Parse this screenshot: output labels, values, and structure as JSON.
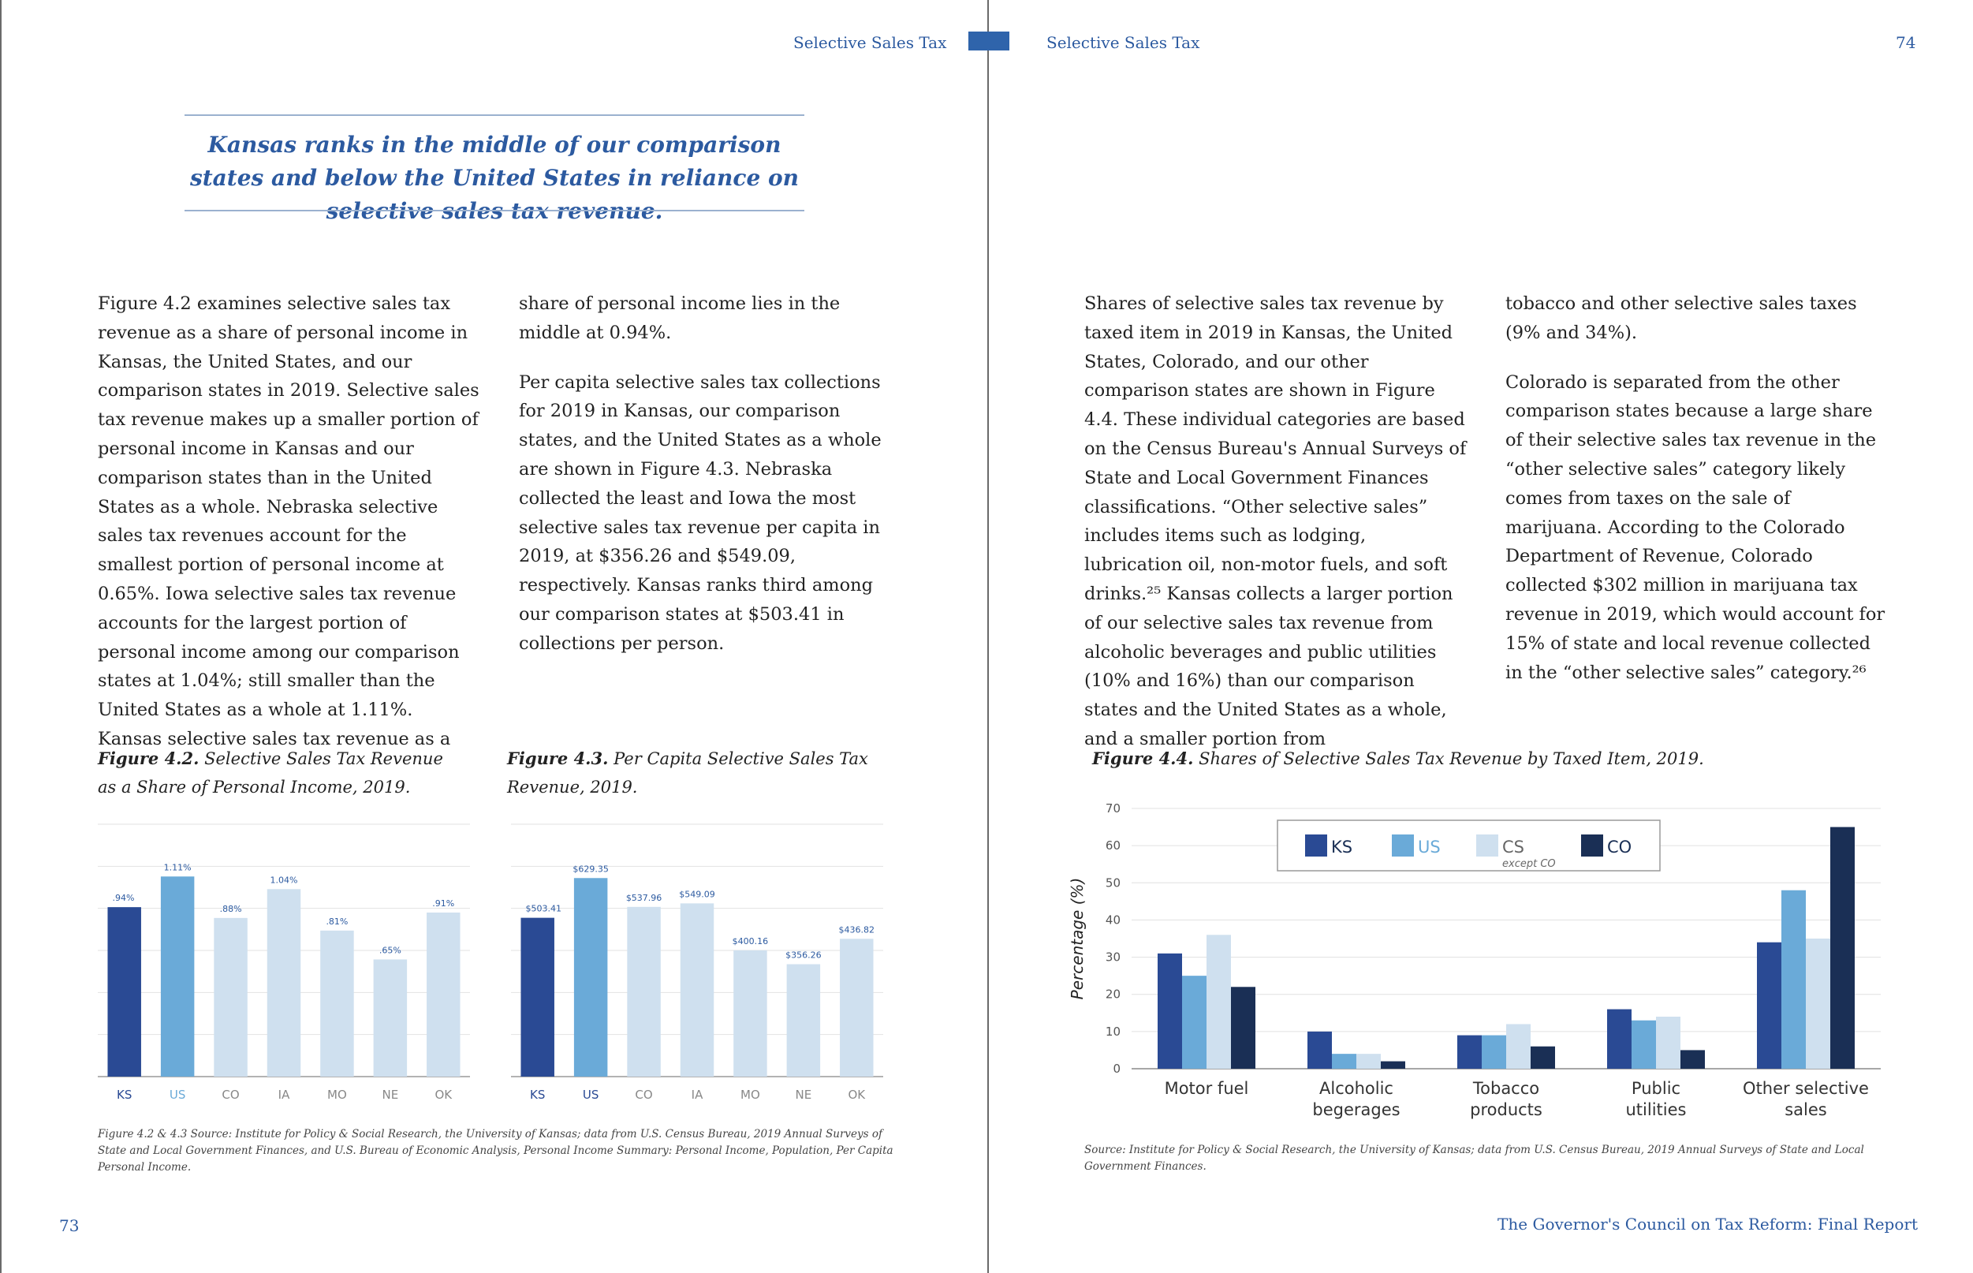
{
  "header": {
    "left_running_head": "Selective Sales Tax",
    "right_running_head": "Selective Sales Tax",
    "right_page_number": "74"
  },
  "left_page": {
    "pullquote": "Kansas ranks in the middle of our comparison states and below the United States in reliance on selective sales tax revenue.",
    "col1_p1": "Figure 4.2 examines selective sales tax revenue as a share of personal income in Kansas, the United States, and our comparison states in 2019. Selective sales tax revenue makes up a smaller portion of personal income in Kansas and our comparison states than in the United States as a whole. Nebraska selective sales tax revenues account for the smallest portion of personal income at 0.65%. Iowa selective sales tax revenue accounts for the largest portion of personal income among our comparison states at 1.04%; still smaller than the United States as a whole at 1.11%. Kansas selective sales tax revenue as a",
    "col2_p1": "share of personal income lies in the middle at 0.94%.",
    "col2_p2": "Per capita selective sales tax collections for 2019 in Kansas, our comparison states, and the United States as a whole are shown in Figure 4.3. Nebraska collected the least and Iowa the most selective sales tax revenue per capita in 2019, at $356.26 and $549.09, respectively. Kansas ranks third among our comparison states at $503.41 in collections per person.",
    "fig42_label": "Figure 4.2.",
    "fig42_title": "Selective Sales Tax Revenue as a Share of Personal Income, 2019.",
    "fig43_label": "Figure 4.3.",
    "fig43_title": "Per Capita Selective Sales Tax Revenue, 2019.",
    "source": "Figure 4.2 & 4.3 Source: Institute for Policy & Social Research, the University of Kansas; data from U.S. Census Bureau, 2019 Annual Surveys of State and Local Government Finances, and U.S. Bureau of Economic Analysis, Personal Income Summary: Personal Income, Population, Per Capita Personal Income.",
    "page_number": "73"
  },
  "right_page": {
    "col1_p1": "Shares of selective sales tax revenue by taxed item in 2019 in Kansas, the United States, Colorado, and our other comparison states are shown in Figure 4.4. These individual categories are based on the Census Bureau's Annual Surveys of State and Local Government Finances classifications. “Other selective sales” includes items such as lodging, lubrication oil, non-motor fuels, and soft drinks.²⁵ Kansas collects a larger portion of our selective sales tax revenue from alcoholic beverages and public utilities (10% and 16%) than our comparison states and the United States as a whole, and a smaller portion from",
    "col2_p1": "tobacco and other selective sales taxes (9% and 34%).",
    "col2_p2": "Colorado is separated from the other comparison states because a large share of their selective sales tax revenue in the “other selective sales” category likely comes from taxes on the sale of marijuana. According to the Colorado Department of Revenue, Colorado collected $302 million in marijuana tax revenue in 2019, which would account for 15% of state and local revenue collected in the “other selective sales” category.²⁶",
    "fig44_label": "Figure 4.4.",
    "fig44_title": "Shares of Selective Sales Tax Revenue by Taxed Item, 2019.",
    "source": "Source: Institute for Policy & Social Research, the University of Kansas; data from U.S. Census Bureau, 2019 Annual Surveys of State and Local Government Finances.",
    "footer_title": "The Governor's Council on Tax Reform: Final Report"
  },
  "colors": {
    "ks": "#2a4a94",
    "us": "#6aaad8",
    "cs": "#cfe0ef",
    "co": "#1a2f55",
    "accent": "#2c5aa0"
  },
  "chart_data": [
    {
      "id": "fig42",
      "type": "bar",
      "categories": [
        "KS",
        "US",
        "CO",
        "IA",
        "MO",
        "NE",
        "OK"
      ],
      "values": [
        0.94,
        1.11,
        0.88,
        1.04,
        0.81,
        0.65,
        0.91
      ],
      "value_labels": [
        ".94%",
        "1.11%",
        ".88%",
        "1.04%",
        ".81%",
        ".65%",
        ".91%"
      ],
      "ylim": [
        0,
        1.4
      ],
      "grid": true,
      "bar_colors": [
        "ks",
        "us",
        "cs",
        "cs",
        "cs",
        "cs",
        "cs"
      ],
      "category_colors": [
        "ks",
        "us",
        "gray",
        "gray",
        "gray",
        "gray",
        "gray"
      ]
    },
    {
      "id": "fig43",
      "type": "bar",
      "categories": [
        "KS",
        "US",
        "CO",
        "IA",
        "MO",
        "NE",
        "OK"
      ],
      "values": [
        503.41,
        629.35,
        537.96,
        549.09,
        400.16,
        356.26,
        436.82
      ],
      "value_labels": [
        "$503.41",
        "$629.35",
        "$537.96",
        "$549.09",
        "$400.16",
        "$356.26",
        "$436.82"
      ],
      "ylim": [
        0,
        800
      ],
      "grid": true,
      "bar_colors": [
        "ks",
        "us",
        "cs",
        "cs",
        "cs",
        "cs",
        "cs"
      ],
      "category_colors": [
        "ks",
        "ks",
        "gray",
        "gray",
        "gray",
        "gray",
        "gray"
      ]
    },
    {
      "id": "fig44",
      "type": "bar",
      "categories": [
        "Motor fuel",
        "Alcoholic begerages",
        "Tobacco products",
        "Public utilities",
        "Other selective sales"
      ],
      "category_lines": [
        [
          "Motor fuel"
        ],
        [
          "Alcoholic",
          "begerages"
        ],
        [
          "Tobacco",
          "products"
        ],
        [
          "Public",
          "utilities"
        ],
        [
          "Other selective",
          "sales"
        ]
      ],
      "series": [
        {
          "name": "KS",
          "color": "ks",
          "values": [
            31,
            10,
            9,
            16,
            34
          ]
        },
        {
          "name": "US",
          "color": "us",
          "values": [
            25,
            4,
            9,
            13,
            48
          ]
        },
        {
          "name": "CS",
          "color": "cs",
          "values": [
            36,
            4,
            12,
            14,
            35
          ]
        },
        {
          "name": "CO",
          "color": "co",
          "values": [
            22,
            2,
            6,
            5,
            65
          ]
        }
      ],
      "legend_note": "except CO",
      "ylabel": "Percentage (%)",
      "ylim": [
        0,
        70
      ],
      "yticks": [
        0,
        10,
        20,
        30,
        40,
        50,
        60,
        70
      ],
      "grid": true,
      "legend": "top-center"
    }
  ]
}
